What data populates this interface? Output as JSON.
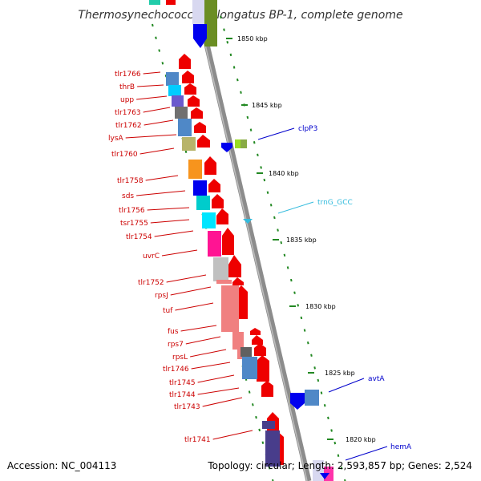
{
  "title": "Thermosynechococcus elongatus BP-1, complete genome",
  "accession": "Accession: NC_004113",
  "topology": "Topology: circular; Length: 2,593,857 bp; Genes: 2,524",
  "ruler": [
    "1850 kbp",
    "1845 kbp",
    "1840 kbp",
    "1835 kbp",
    "1830 kbp",
    "1825 kbp",
    "1820 kbp"
  ],
  "left_labels": [
    "tlr1766",
    "thrB",
    "upp",
    "tlr1763",
    "tlr1762",
    "lysA",
    "tlr1760",
    "tlr1758",
    "sds",
    "tlr1756",
    "tsr1755",
    "tlr1754",
    "uvrC",
    "tlr1752",
    "rpsJ",
    "tuf",
    "fus",
    "rps7",
    "rpsL",
    "tlr1746",
    "tlr1745",
    "tlr1744",
    "tlr1743",
    "tlr1741"
  ],
  "right_labels": [
    {
      "text": "clpP3",
      "color": "#0000cc"
    },
    {
      "text": "trnG_GCC",
      "color": "#33bbdd"
    },
    {
      "text": "avtA",
      "color": "#0000cc"
    },
    {
      "text": "hemA",
      "color": "#0000cc"
    }
  ],
  "colors": {
    "forward_arrow": "#ee0000",
    "backbone": "#888888",
    "tick": "#228822",
    "label_red": "#cc0000",
    "label_blue": "#0000cc",
    "label_cyan": "#33bbdd"
  }
}
